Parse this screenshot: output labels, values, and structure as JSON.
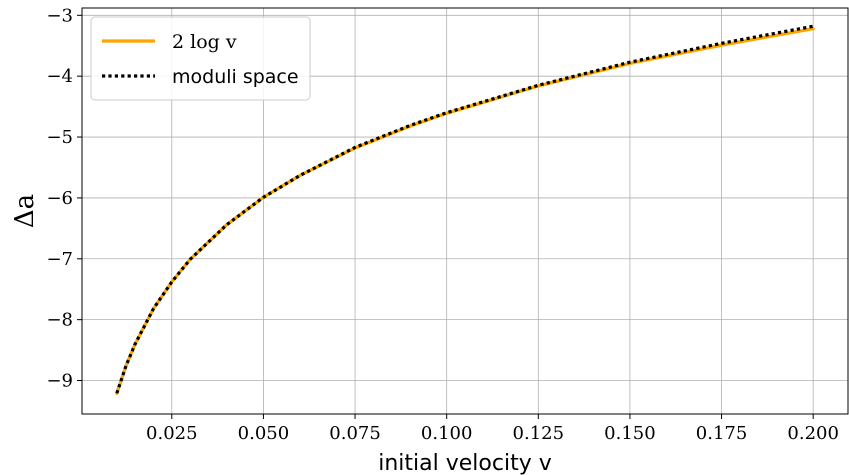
{
  "chart_data": {
    "type": "line",
    "xlabel": "initial velocity v",
    "ylabel": "Δa",
    "xlim": [
      0.0005,
      0.2095
    ],
    "ylim": [
      -9.55,
      -2.88
    ],
    "xticks": [
      0.025,
      0.05,
      0.075,
      0.1,
      0.125,
      0.15,
      0.175,
      0.2
    ],
    "xtick_labels": [
      "0.025",
      "0.050",
      "0.075",
      "0.100",
      "0.125",
      "0.150",
      "0.175",
      "0.200"
    ],
    "yticks": [
      -9,
      -8,
      -7,
      -6,
      -5,
      -4,
      -3
    ],
    "ytick_labels": [
      "−9",
      "−8",
      "−7",
      "−6",
      "−5",
      "−4",
      "−3"
    ],
    "grid": true,
    "legend_position": "top-left",
    "series": [
      {
        "name": "2 log v",
        "style": "solid",
        "color": "#FFA500",
        "x": [
          0.01,
          0.0125,
          0.015,
          0.02,
          0.025,
          0.03,
          0.04,
          0.05,
          0.06,
          0.075,
          0.09,
          0.1,
          0.125,
          0.15,
          0.175,
          0.2
        ],
        "y": [
          -9.21,
          -8.76,
          -8.4,
          -7.82,
          -7.38,
          -7.01,
          -6.44,
          -5.99,
          -5.63,
          -5.18,
          -4.82,
          -4.61,
          -4.16,
          -3.79,
          -3.49,
          -3.22
        ]
      },
      {
        "name": "moduli space",
        "style": "dotted",
        "color": "#000000",
        "x": [
          0.01,
          0.0125,
          0.015,
          0.02,
          0.025,
          0.03,
          0.04,
          0.05,
          0.06,
          0.075,
          0.09,
          0.1,
          0.125,
          0.15,
          0.175,
          0.2
        ],
        "y": [
          -9.21,
          -8.76,
          -8.4,
          -7.82,
          -7.38,
          -7.01,
          -6.44,
          -5.99,
          -5.63,
          -5.17,
          -4.81,
          -4.6,
          -4.15,
          -3.77,
          -3.46,
          -3.18
        ]
      }
    ]
  }
}
